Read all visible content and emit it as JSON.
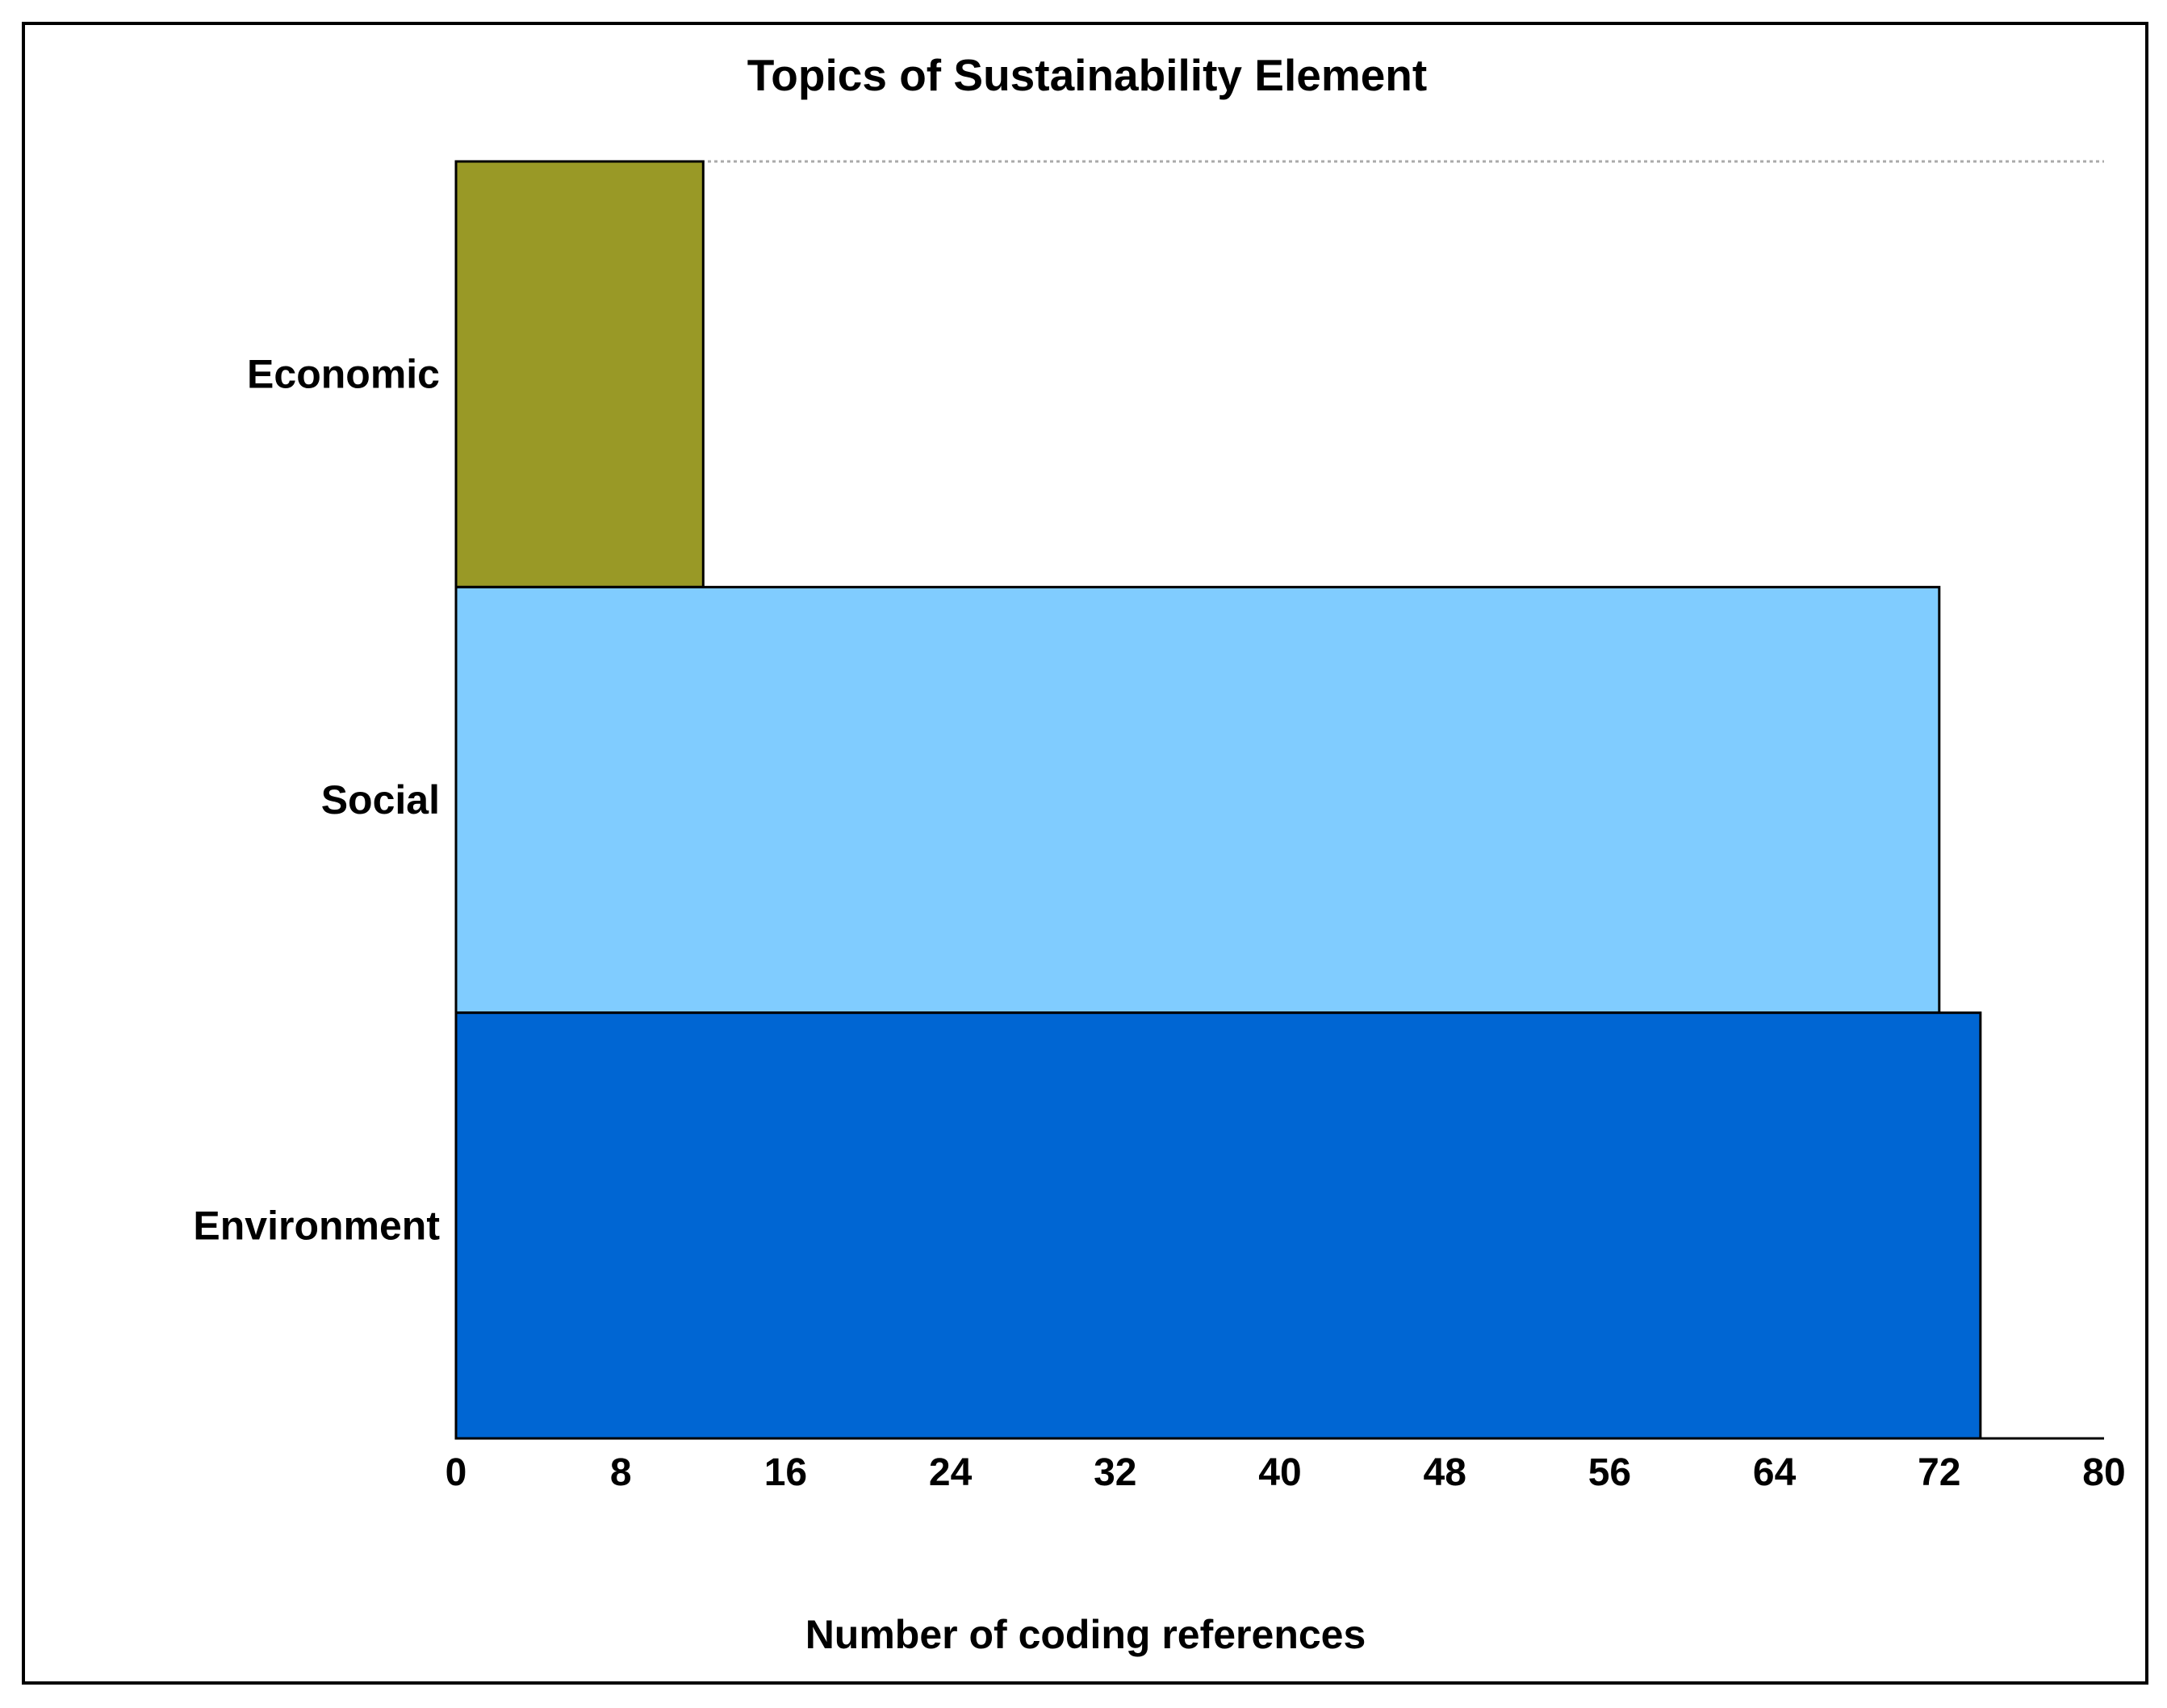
{
  "chart_data": {
    "type": "bar",
    "orientation": "horizontal",
    "title": "Topics of Sustainability Element",
    "xlabel": "Number of coding references",
    "ylabel": "",
    "categories": [
      "Economic",
      "Social",
      "Environment"
    ],
    "values": [
      12,
      72,
      74
    ],
    "colors": [
      "#999926",
      "#80CCFF",
      "#0066D3"
    ],
    "xlim": [
      0,
      80
    ],
    "ticks": [
      0,
      8,
      16,
      24,
      32,
      40,
      48,
      56,
      64,
      72,
      80
    ],
    "tick_labels": [
      "0",
      "8",
      "16",
      "24",
      "32",
      "40",
      "48",
      "56",
      "64",
      "72",
      "80"
    ],
    "grid": false,
    "legend": "none"
  }
}
